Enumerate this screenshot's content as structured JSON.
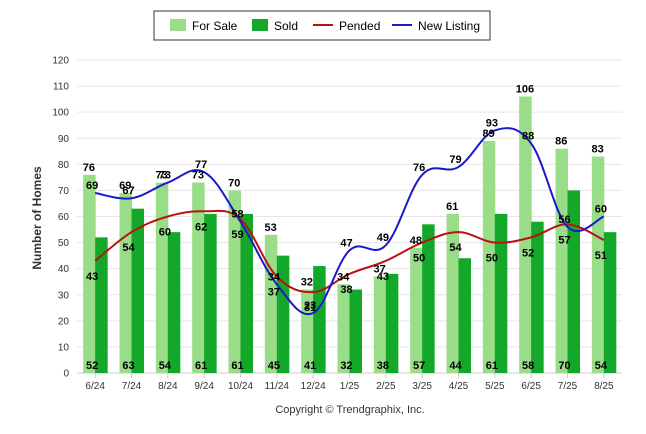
{
  "chart_data": {
    "type": "bar",
    "categories": [
      "6/24",
      "7/24",
      "8/24",
      "9/24",
      "10/24",
      "11/24",
      "12/24",
      "1/25",
      "2/25",
      "3/25",
      "4/25",
      "5/25",
      "6/25",
      "7/25",
      "8/25"
    ],
    "series": [
      {
        "name": "For Sale",
        "kind": "bar",
        "color": "#99dd88",
        "values": [
          76,
          69,
          73,
          73,
          70,
          53,
          32,
          34,
          37,
          48,
          61,
          89,
          106,
          86,
          83
        ]
      },
      {
        "name": "Sold",
        "kind": "bar",
        "color": "#14a82a",
        "values": [
          52,
          63,
          54,
          61,
          61,
          45,
          41,
          32,
          38,
          57,
          44,
          61,
          58,
          70,
          54
        ]
      },
      {
        "name": "Pended",
        "kind": "line",
        "color": "#bb1111",
        "values": [
          43,
          54,
          60,
          62,
          59,
          37,
          31,
          38,
          43,
          50,
          54,
          50,
          52,
          57,
          51
        ]
      },
      {
        "name": "New Listing",
        "kind": "line",
        "color": "#1a1acc",
        "values": [
          69,
          67,
          73,
          77,
          58,
          34,
          23,
          47,
          49,
          76,
          79,
          93,
          88,
          56,
          60
        ]
      }
    ],
    "ylabel": "Number of Homes",
    "ylim": [
      0,
      120
    ],
    "yticks": [
      0,
      10,
      20,
      30,
      40,
      50,
      60,
      70,
      80,
      90,
      100,
      110,
      120
    ],
    "grid": true,
    "legend": "top-center",
    "copyright": "Copyright © Trendgraphix, Inc."
  }
}
